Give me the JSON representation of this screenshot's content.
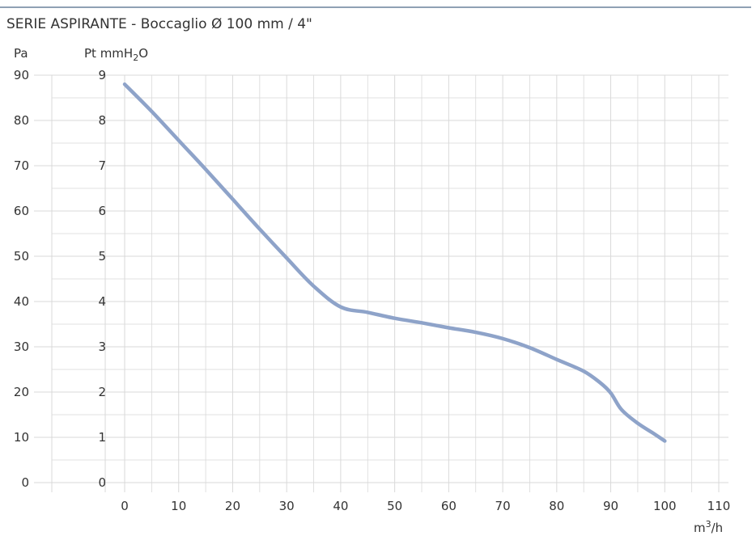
{
  "chart_data": {
    "type": "line",
    "title": "SERIE ASPIRANTE  - Boccaglio Ø 100 mm / 4\"",
    "colors": {
      "title_rule": "#8fa1b4",
      "grid": "#d9d9d9",
      "curve": "#8ea3c9",
      "text": "#333333"
    },
    "grid": true,
    "x_axis": {
      "label_base": "m",
      "label_sup": "3",
      "label_tail": "/h",
      "range": [
        0,
        110
      ],
      "ticks": [
        "0",
        "10",
        "20",
        "30",
        "40",
        "50",
        "60",
        "70",
        "80",
        "90",
        "100",
        "110"
      ]
    },
    "y_axis_pa": {
      "label": "Pa",
      "range": [
        0,
        90
      ],
      "ticks": [
        "0",
        "10",
        "20",
        "30",
        "40",
        "50",
        "60",
        "70",
        "80",
        "90"
      ]
    },
    "y_axis_mmh2o": {
      "label_main": "Pt mmH",
      "label_sub": "2",
      "label_tail": "O",
      "range": [
        0,
        9
      ],
      "ticks": [
        "0",
        "1",
        "2",
        "3",
        "4",
        "5",
        "6",
        "7",
        "8",
        "9"
      ]
    },
    "series": [
      {
        "x": [
          0,
          5,
          10,
          15,
          20,
          25,
          30,
          35,
          40,
          45,
          50,
          55,
          60,
          65,
          70,
          75,
          80,
          85,
          88,
          90,
          92,
          95,
          98,
          100
        ],
        "y": [
          88,
          82,
          75.6,
          69.2,
          62.6,
          56,
          49.6,
          43.4,
          38.8,
          37.6,
          36.3,
          35.3,
          34.2,
          33.2,
          31.8,
          29.8,
          27.2,
          24.6,
          22.1,
          19.8,
          16.1,
          13.1,
          10.8,
          9.2
        ]
      }
    ]
  }
}
